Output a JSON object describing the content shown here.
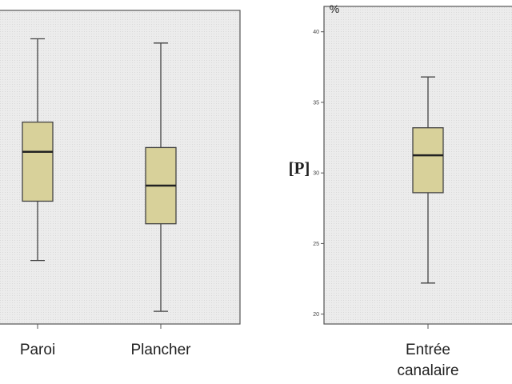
{
  "chart_data": [
    {
      "type": "box",
      "categories": [
        "Paroi",
        "Plancher"
      ],
      "boxes": [
        {
          "min": 23.8,
          "q1": 28.0,
          "median": 31.5,
          "q3": 33.6,
          "max": 39.5
        },
        {
          "min": 20.2,
          "q1": 26.4,
          "median": 29.1,
          "q3": 31.8,
          "max": 39.2
        }
      ],
      "color": "#d8d19a",
      "ylim": [
        19.3,
        41.4
      ]
    },
    {
      "type": "box",
      "categories": [
        "Entrée canalaire"
      ],
      "ylabel": "[P]",
      "y_unit": "%",
      "boxes": [
        {
          "min": 22.2,
          "q1": 28.6,
          "median": 31.25,
          "q3": 33.2,
          "max": 36.8
        }
      ],
      "color": "#d8d19a",
      "ylim": [
        19.3,
        41.4
      ],
      "yticks": [
        20,
        25,
        30,
        35,
        40
      ]
    }
  ]
}
